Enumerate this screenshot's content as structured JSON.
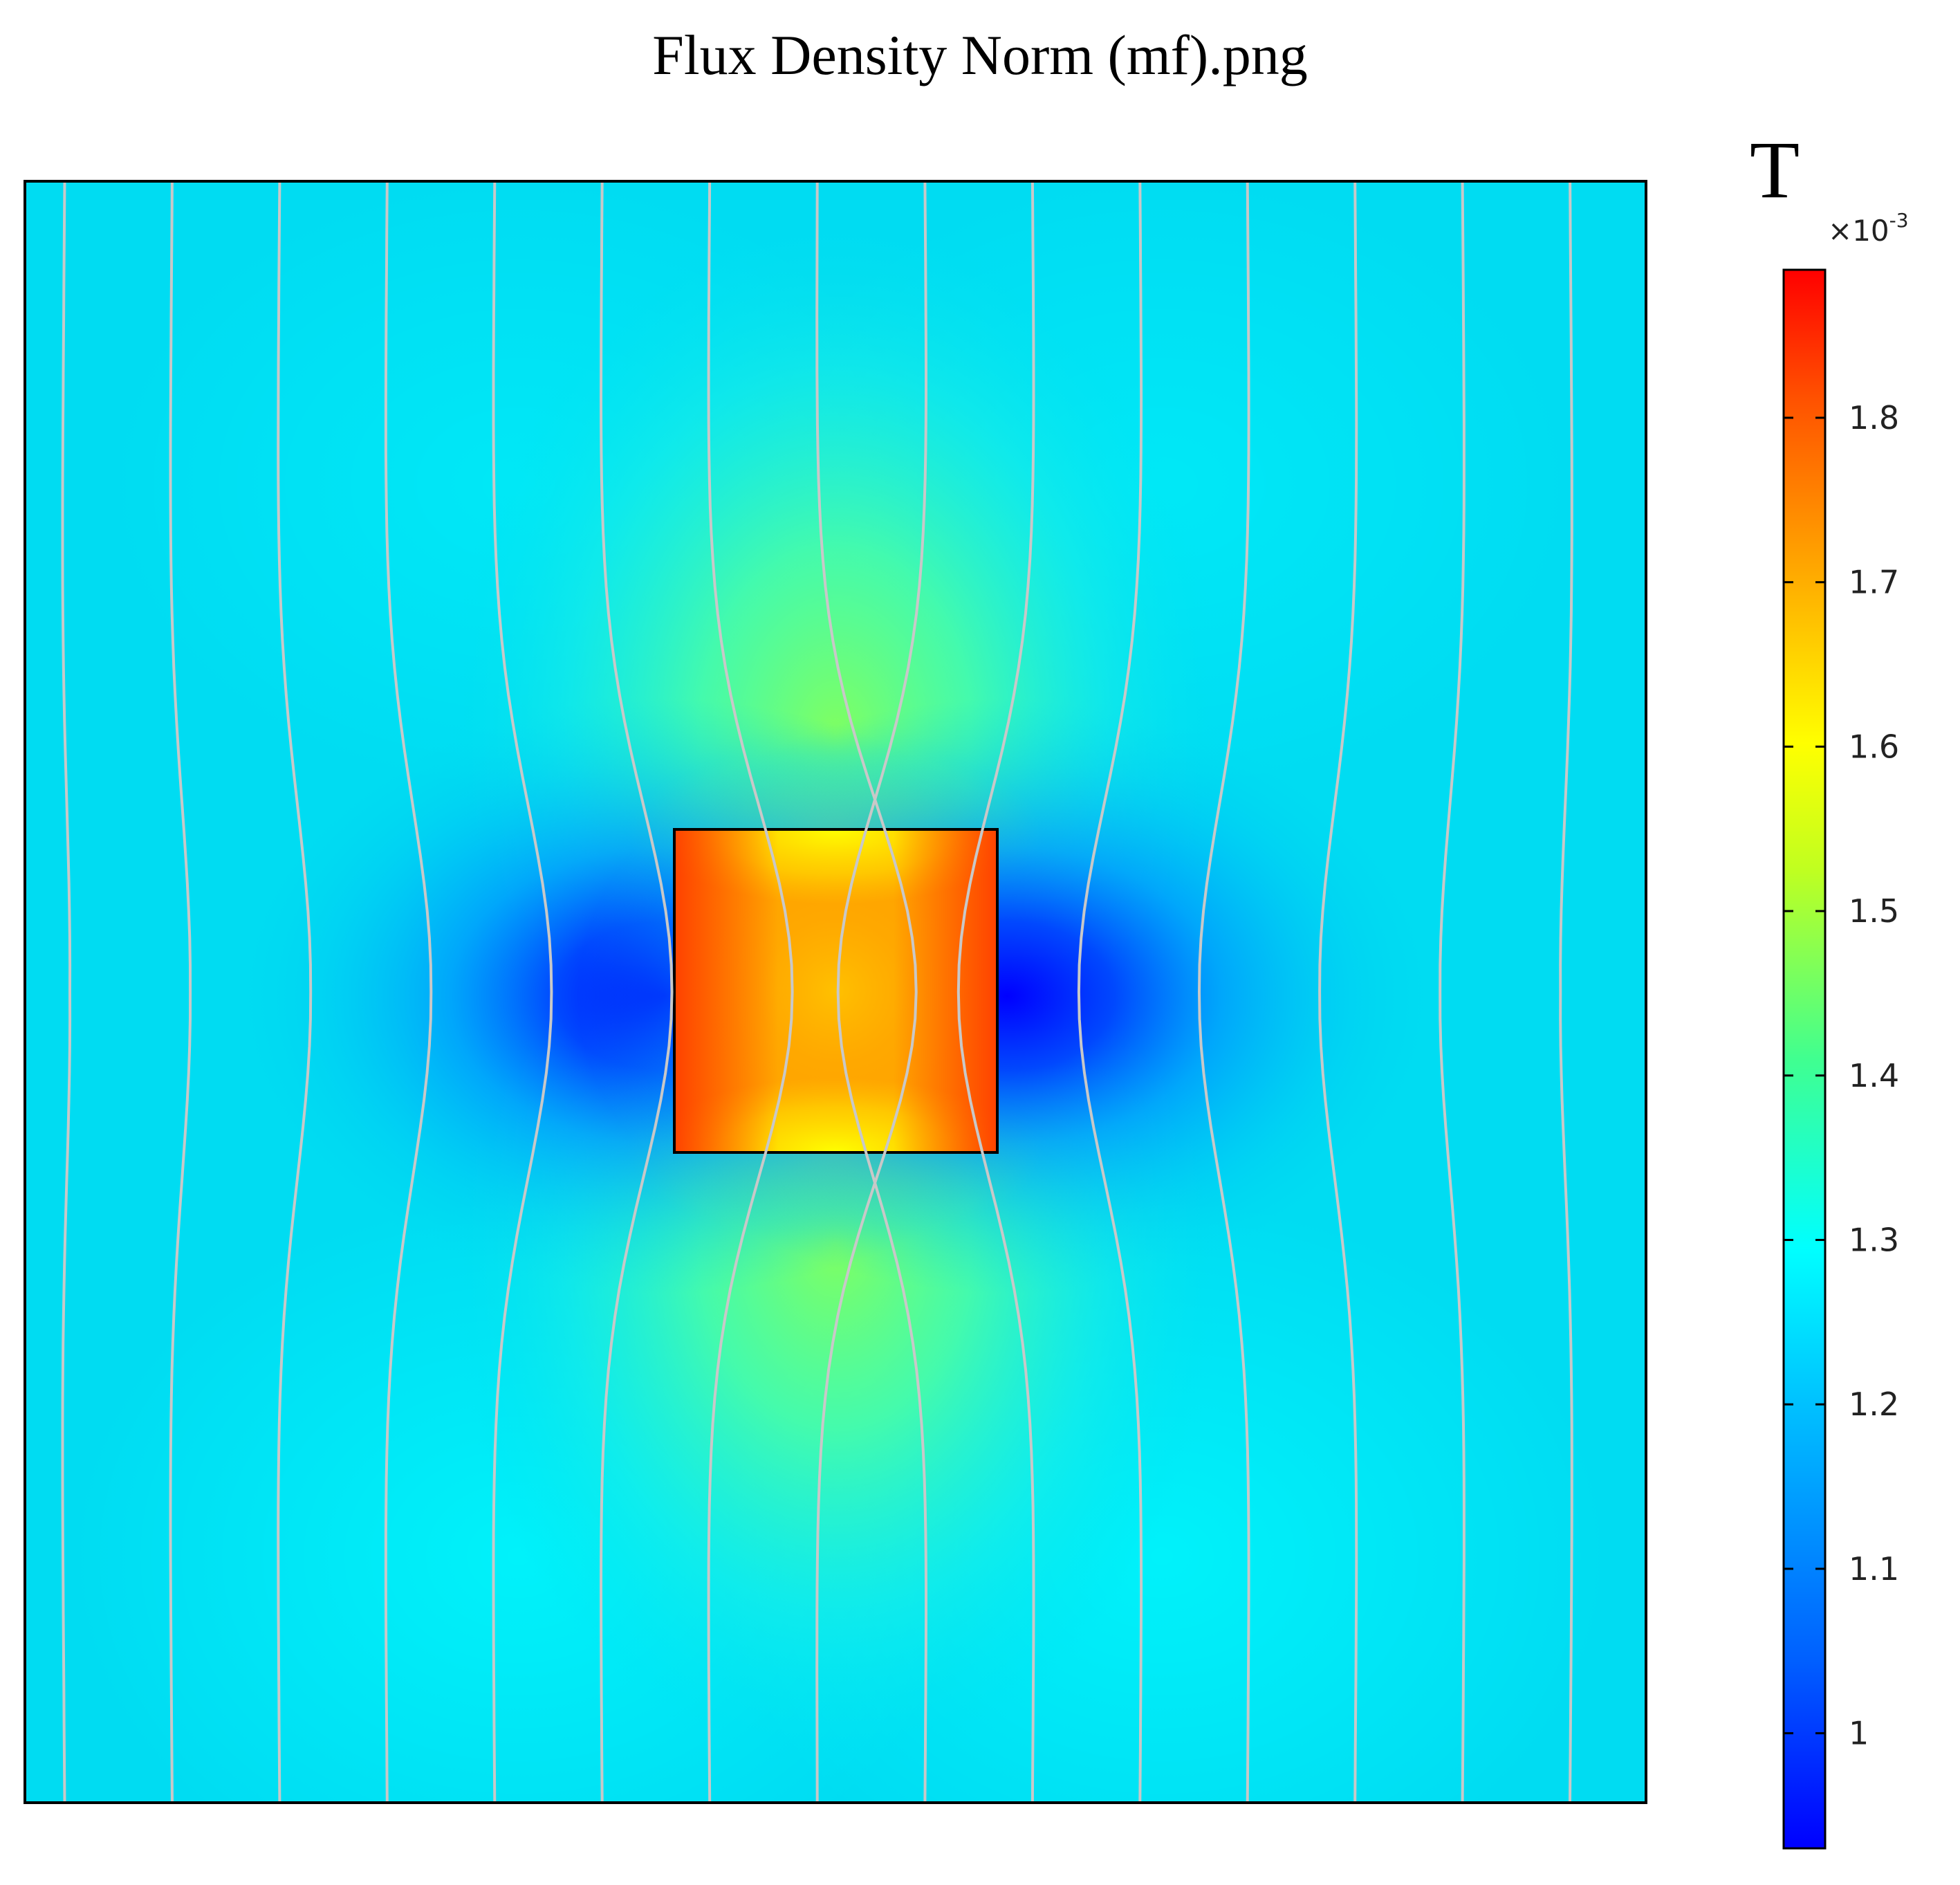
{
  "figure": {
    "title": "Flux Density Norm (mf).png"
  },
  "chart_data": {
    "type": "heatmap",
    "title": "Flux Density Norm (mf).png",
    "description": "Surface plot of magnetic flux density norm with streamlines around a square object",
    "colorbar": {
      "unit": "T",
      "multiplier": "×10",
      "multiplier_exponent": "-3",
      "range": [
        0.93,
        1.89
      ],
      "ticks": [
        1,
        1.1,
        1.2,
        1.3,
        1.4,
        1.5,
        1.6,
        1.7,
        1.8
      ],
      "tick_labels": [
        "1",
        "1.1",
        "1.2",
        "1.3",
        "1.4",
        "1.5",
        "1.6",
        "1.7",
        "1.8"
      ],
      "colormap": [
        "#0000ff",
        "#0080ff",
        "#00e5ff",
        "#40ff80",
        "#ffff00",
        "#ff8000",
        "#ff0000"
      ]
    },
    "field": {
      "background_value": 1.21,
      "object_value": 1.75,
      "low_value": 0.95,
      "high_value": 1.45
    },
    "streamlines": {
      "count": 15,
      "color": "#c8c8c8"
    },
    "grid": false,
    "legend": "right"
  }
}
